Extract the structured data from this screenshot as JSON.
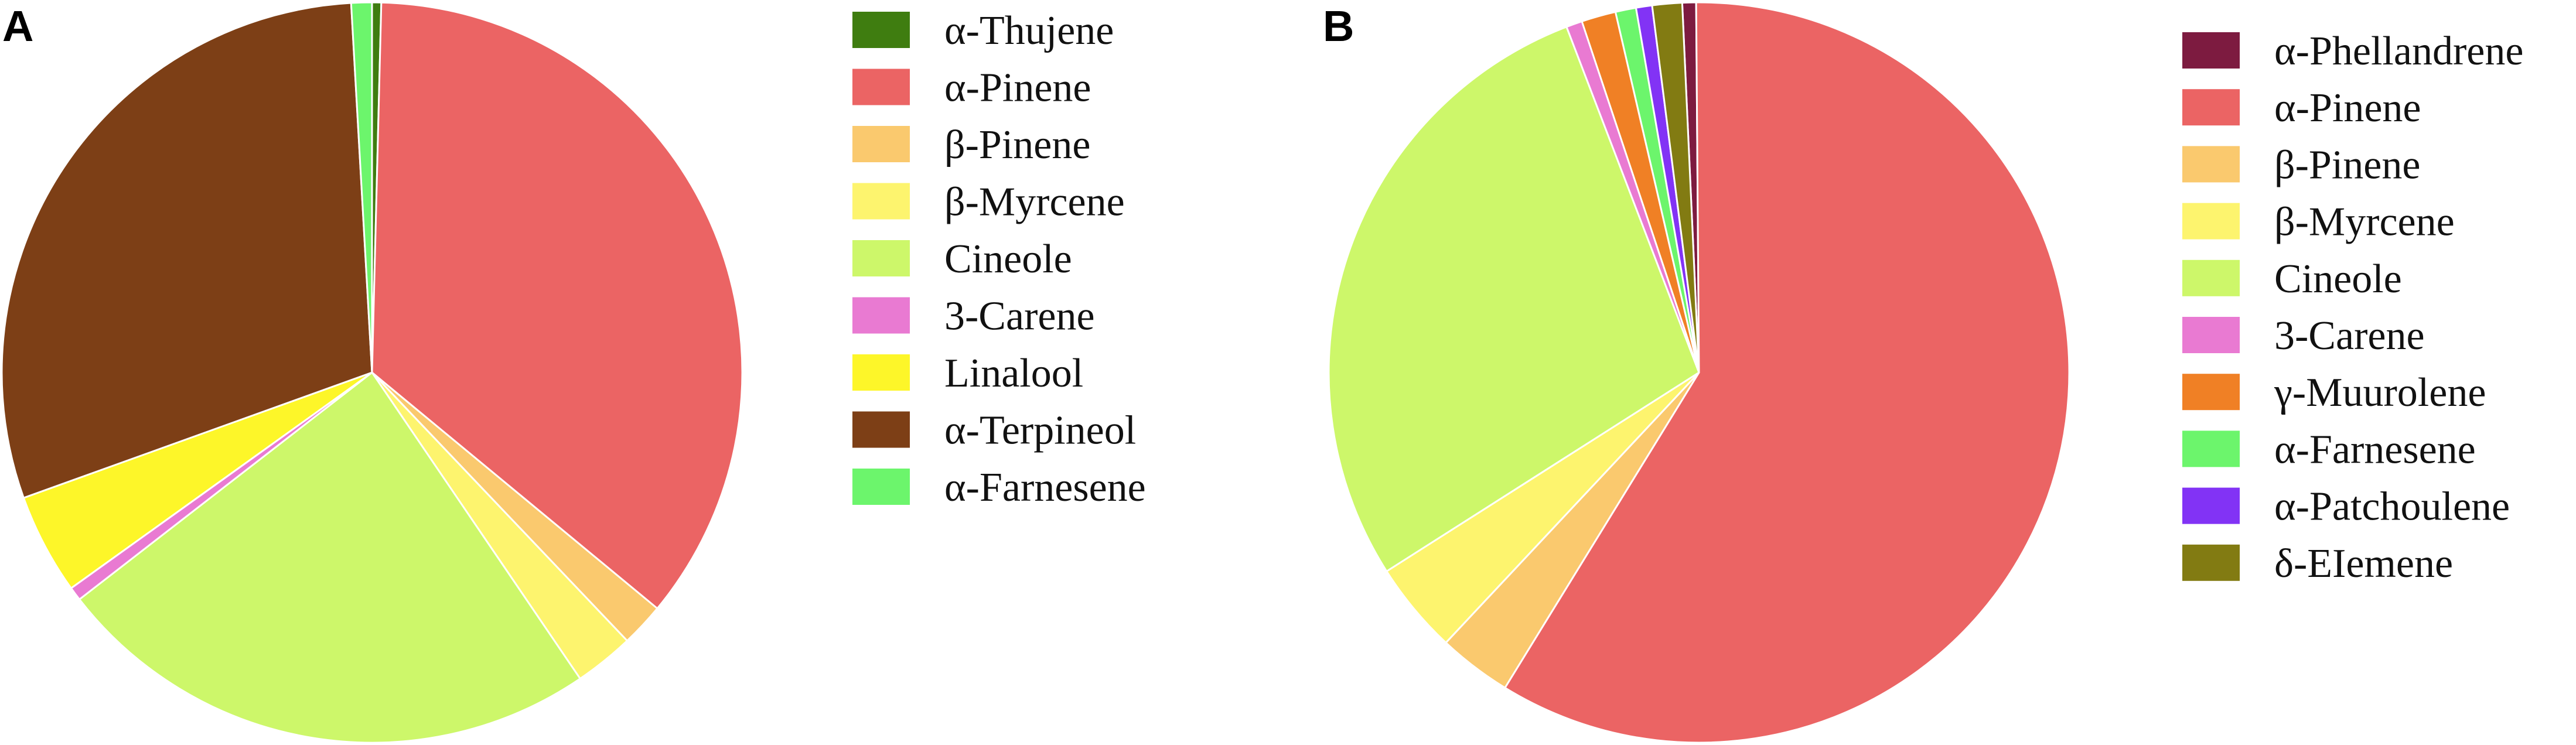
{
  "chart_data": [
    {
      "type": "pie",
      "panel_label": "A",
      "legend_placement": "right",
      "slices": [
        {
          "label": "α-Thujene",
          "value": 0.4,
          "color": "#3f7d10"
        },
        {
          "label": "α-Pinene",
          "value": 35.6,
          "color": "#eb6464"
        },
        {
          "label": "β-Pinene",
          "value": 1.9,
          "color": "#fac96e"
        },
        {
          "label": "β-Myrcene",
          "value": 2.6,
          "color": "#fdf46e"
        },
        {
          "label": "Cineole",
          "value": 24.0,
          "color": "#cdf76a"
        },
        {
          "label": "3-Carene",
          "value": 0.6,
          "color": "#e97ad2"
        },
        {
          "label": "Linalool",
          "value": 4.4,
          "color": "#fdf629"
        },
        {
          "label": "α-Terpineol",
          "value": 29.6,
          "color": "#7d3f16"
        },
        {
          "label": "α-Farnesene",
          "value": 0.9,
          "color": "#6cf56c"
        }
      ]
    },
    {
      "type": "pie",
      "panel_label": "B",
      "legend_placement": "right",
      "slices": [
        {
          "label": "α-Phellandrene",
          "value": 0.6,
          "color": "#7d1b40"
        },
        {
          "label": "α-Pinene",
          "value": 58.9,
          "color": "#eb6464"
        },
        {
          "label": "β-Pinene",
          "value": 3.2,
          "color": "#fac96e"
        },
        {
          "label": "β-Myrcene",
          "value": 4.0,
          "color": "#fdf46e"
        },
        {
          "label": "Cineole",
          "value": 28.2,
          "color": "#cdf76a"
        },
        {
          "label": "3-Carene",
          "value": 0.7,
          "color": "#e97ad2"
        },
        {
          "label": "γ-Muurolene",
          "value": 1.5,
          "color": "#f08025"
        },
        {
          "label": "α-Farnesene",
          "value": 0.9,
          "color": "#6cf56c"
        },
        {
          "label": "α-Patchoulene",
          "value": 0.7,
          "color": "#8233f5"
        },
        {
          "label": "δ-EIemene",
          "value": 1.3,
          "color": "#827b12"
        }
      ]
    }
  ]
}
